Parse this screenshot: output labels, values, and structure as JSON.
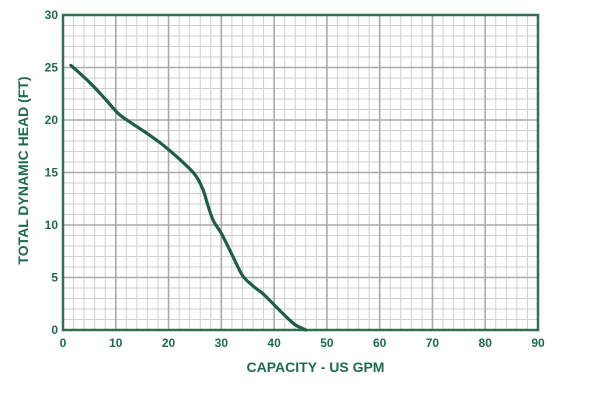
{
  "chart_data": {
    "type": "line",
    "title": "",
    "xlabel": "CAPACITY - US GPM",
    "ylabel": "TOTAL DYNAMIC HEAD (FT)",
    "xlim": [
      0,
      90
    ],
    "ylim": [
      0,
      30
    ],
    "x_ticks": [
      0,
      10,
      20,
      30,
      40,
      50,
      60,
      70,
      80,
      90
    ],
    "y_ticks": [
      0,
      5,
      10,
      15,
      20,
      25,
      30
    ],
    "x_tick_labels": [
      "0",
      "10",
      "20",
      "30",
      "40",
      "50",
      "60",
      "70",
      "80",
      "90"
    ],
    "y_tick_labels": [
      "0",
      "5",
      "10",
      "15",
      "20",
      "25",
      "30"
    ],
    "grid": true,
    "minor_grid_step": 2,
    "series": [
      {
        "x": [
          1.5,
          5,
          8,
          10.5,
          13,
          16,
          19,
          22,
          25,
          26.5,
          27.5,
          28.5,
          30,
          32,
          34,
          36,
          38,
          40,
          42,
          44,
          46
        ],
        "y": [
          25.2,
          23.6,
          22.0,
          20.6,
          19.7,
          18.7,
          17.6,
          16.3,
          14.8,
          13.4,
          11.8,
          10.4,
          9.2,
          7.2,
          5.2,
          4.2,
          3.4,
          2.4,
          1.4,
          0.5,
          0
        ]
      }
    ],
    "colors": {
      "line": "#1d5e44",
      "axis_text": "#1d6b4b",
      "frame": "#2f6f52",
      "major_grid": "#a9a9a9",
      "minor_grid": "#cfcfcf"
    }
  }
}
